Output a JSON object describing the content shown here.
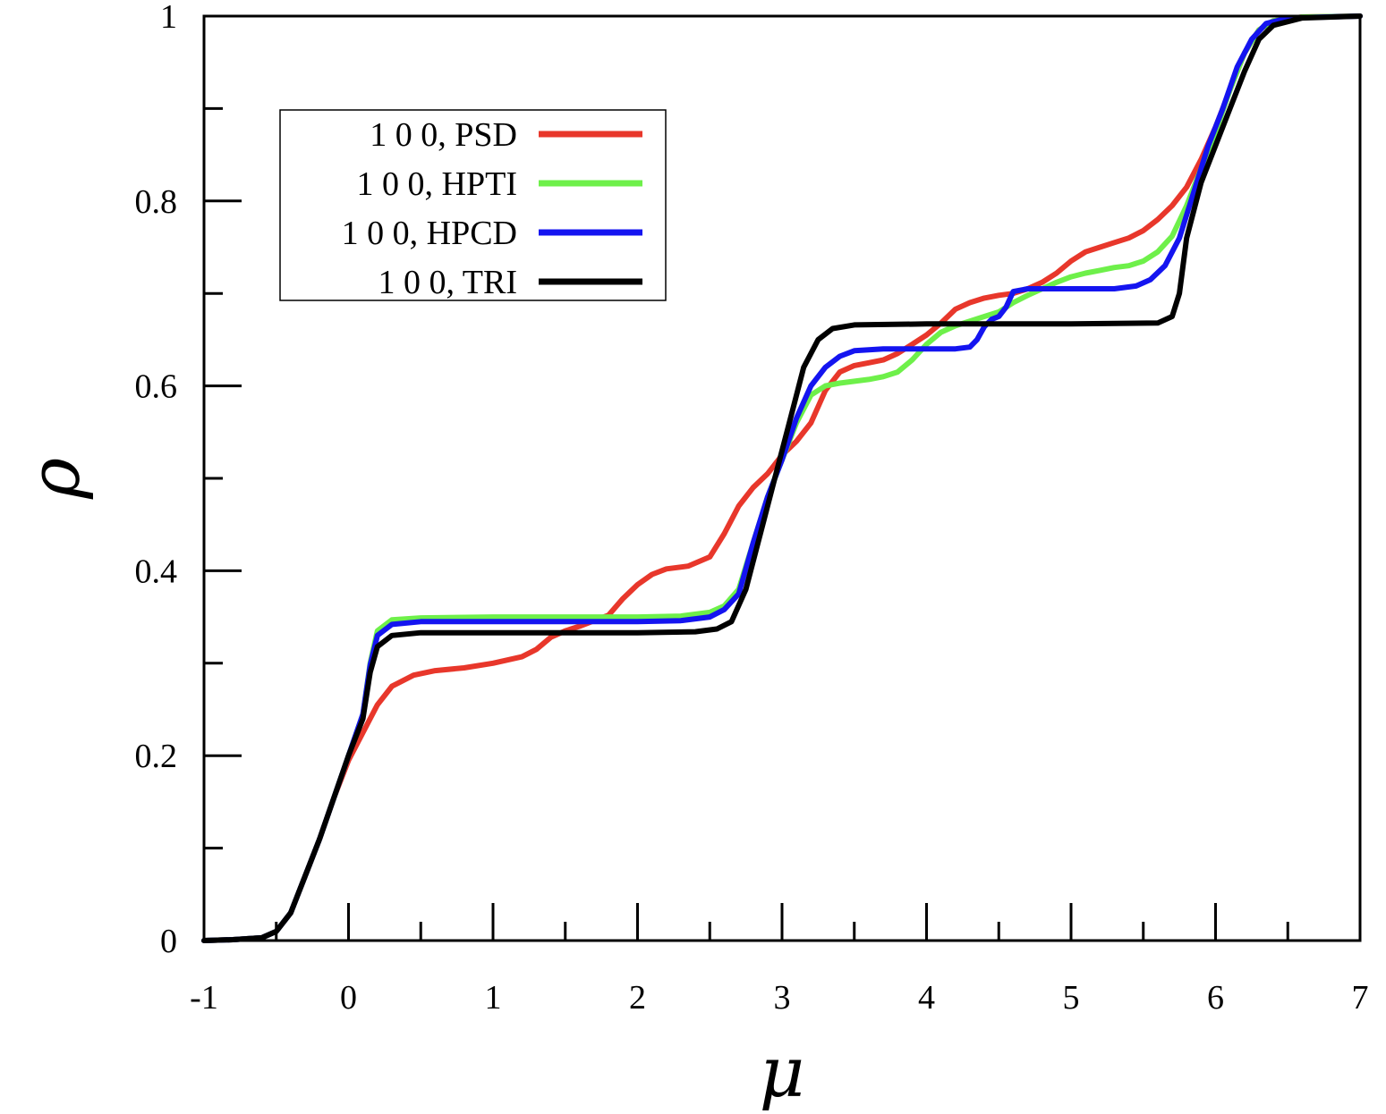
{
  "chart_data": {
    "type": "line",
    "title": "",
    "xlabel": "μ",
    "ylabel": "ρ",
    "xlim": [
      -1,
      7
    ],
    "ylim": [
      0,
      1
    ],
    "xticks": [
      -1,
      0,
      1,
      2,
      3,
      4,
      5,
      6,
      7
    ],
    "xtick_labels": [
      "-1",
      "0",
      "1",
      "2",
      "3",
      "4",
      "5",
      "6",
      "7"
    ],
    "yticks": [
      0,
      0.2,
      0.4,
      0.6,
      0.8,
      1
    ],
    "ytick_labels": [
      "0",
      "0.2",
      "0.4",
      "0.6",
      "0.8",
      "1"
    ],
    "grid": false,
    "legend_position": "top-left",
    "series": [
      {
        "name": "1 0 0, PSD",
        "color": "#e8372b",
        "points": [
          [
            -1,
            0
          ],
          [
            -0.8,
            0.001
          ],
          [
            -0.6,
            0.003
          ],
          [
            -0.5,
            0.01
          ],
          [
            -0.4,
            0.03
          ],
          [
            -0.3,
            0.07
          ],
          [
            -0.2,
            0.11
          ],
          [
            -0.1,
            0.155
          ],
          [
            0,
            0.195
          ],
          [
            0.1,
            0.225
          ],
          [
            0.2,
            0.255
          ],
          [
            0.3,
            0.275
          ],
          [
            0.45,
            0.287
          ],
          [
            0.6,
            0.292
          ],
          [
            0.8,
            0.295
          ],
          [
            1.0,
            0.3
          ],
          [
            1.2,
            0.307
          ],
          [
            1.3,
            0.315
          ],
          [
            1.4,
            0.328
          ],
          [
            1.5,
            0.335
          ],
          [
            1.6,
            0.34
          ],
          [
            1.8,
            0.352
          ],
          [
            1.9,
            0.37
          ],
          [
            2.0,
            0.385
          ],
          [
            2.1,
            0.396
          ],
          [
            2.2,
            0.402
          ],
          [
            2.35,
            0.405
          ],
          [
            2.5,
            0.415
          ],
          [
            2.6,
            0.44
          ],
          [
            2.7,
            0.47
          ],
          [
            2.8,
            0.49
          ],
          [
            2.9,
            0.505
          ],
          [
            3.0,
            0.525
          ],
          [
            3.1,
            0.54
          ],
          [
            3.2,
            0.56
          ],
          [
            3.3,
            0.595
          ],
          [
            3.4,
            0.615
          ],
          [
            3.5,
            0.622
          ],
          [
            3.6,
            0.625
          ],
          [
            3.7,
            0.628
          ],
          [
            3.8,
            0.635
          ],
          [
            3.9,
            0.645
          ],
          [
            4.0,
            0.655
          ],
          [
            4.1,
            0.668
          ],
          [
            4.2,
            0.683
          ],
          [
            4.3,
            0.69
          ],
          [
            4.4,
            0.695
          ],
          [
            4.5,
            0.698
          ],
          [
            4.6,
            0.7
          ],
          [
            4.7,
            0.705
          ],
          [
            4.8,
            0.712
          ],
          [
            4.9,
            0.722
          ],
          [
            5.0,
            0.735
          ],
          [
            5.1,
            0.745
          ],
          [
            5.2,
            0.75
          ],
          [
            5.3,
            0.755
          ],
          [
            5.4,
            0.76
          ],
          [
            5.5,
            0.768
          ],
          [
            5.6,
            0.78
          ],
          [
            5.7,
            0.795
          ],
          [
            5.8,
            0.815
          ],
          [
            5.9,
            0.845
          ],
          [
            6.0,
            0.88
          ],
          [
            6.1,
            0.92
          ],
          [
            6.2,
            0.96
          ],
          [
            6.3,
            0.985
          ],
          [
            6.4,
            0.995
          ],
          [
            6.6,
            0.999
          ],
          [
            7,
            1.0
          ]
        ]
      },
      {
        "name": "1 0 0, HPTI",
        "color": "#6ef04a",
        "points": [
          [
            -1,
            0
          ],
          [
            -0.8,
            0.001
          ],
          [
            -0.6,
            0.003
          ],
          [
            -0.5,
            0.01
          ],
          [
            -0.4,
            0.03
          ],
          [
            -0.3,
            0.07
          ],
          [
            -0.2,
            0.11
          ],
          [
            -0.1,
            0.155
          ],
          [
            0,
            0.2
          ],
          [
            0.1,
            0.245
          ],
          [
            0.15,
            0.3
          ],
          [
            0.2,
            0.335
          ],
          [
            0.3,
            0.347
          ],
          [
            0.5,
            0.349
          ],
          [
            1.0,
            0.35
          ],
          [
            2.0,
            0.35
          ],
          [
            2.3,
            0.351
          ],
          [
            2.5,
            0.355
          ],
          [
            2.6,
            0.362
          ],
          [
            2.7,
            0.38
          ],
          [
            2.8,
            0.43
          ],
          [
            2.9,
            0.48
          ],
          [
            3.0,
            0.52
          ],
          [
            3.1,
            0.56
          ],
          [
            3.2,
            0.59
          ],
          [
            3.3,
            0.6
          ],
          [
            3.4,
            0.603
          ],
          [
            3.6,
            0.607
          ],
          [
            3.7,
            0.61
          ],
          [
            3.8,
            0.615
          ],
          [
            3.9,
            0.628
          ],
          [
            4.0,
            0.645
          ],
          [
            4.1,
            0.658
          ],
          [
            4.2,
            0.665
          ],
          [
            4.3,
            0.67
          ],
          [
            4.4,
            0.675
          ],
          [
            4.5,
            0.68
          ],
          [
            4.6,
            0.69
          ],
          [
            4.7,
            0.698
          ],
          [
            4.8,
            0.705
          ],
          [
            4.9,
            0.712
          ],
          [
            5.0,
            0.718
          ],
          [
            5.1,
            0.722
          ],
          [
            5.2,
            0.725
          ],
          [
            5.3,
            0.728
          ],
          [
            5.4,
            0.73
          ],
          [
            5.5,
            0.735
          ],
          [
            5.6,
            0.745
          ],
          [
            5.7,
            0.762
          ],
          [
            5.8,
            0.795
          ],
          [
            5.9,
            0.835
          ],
          [
            6.0,
            0.875
          ],
          [
            6.1,
            0.92
          ],
          [
            6.2,
            0.96
          ],
          [
            6.3,
            0.985
          ],
          [
            6.4,
            0.995
          ],
          [
            6.6,
            0.999
          ],
          [
            7,
            1.0
          ]
        ]
      },
      {
        "name": "1 0 0, HPCD",
        "color": "#1414f0",
        "points": [
          [
            -1,
            0
          ],
          [
            -0.8,
            0.001
          ],
          [
            -0.6,
            0.003
          ],
          [
            -0.5,
            0.01
          ],
          [
            -0.4,
            0.03
          ],
          [
            -0.3,
            0.07
          ],
          [
            -0.2,
            0.11
          ],
          [
            -0.1,
            0.155
          ],
          [
            0,
            0.2
          ],
          [
            0.1,
            0.245
          ],
          [
            0.15,
            0.298
          ],
          [
            0.2,
            0.33
          ],
          [
            0.3,
            0.342
          ],
          [
            0.5,
            0.345
          ],
          [
            1.0,
            0.345
          ],
          [
            2.0,
            0.345
          ],
          [
            2.3,
            0.346
          ],
          [
            2.5,
            0.35
          ],
          [
            2.6,
            0.358
          ],
          [
            2.7,
            0.375
          ],
          [
            2.8,
            0.43
          ],
          [
            2.9,
            0.48
          ],
          [
            3.0,
            0.52
          ],
          [
            3.1,
            0.565
          ],
          [
            3.2,
            0.6
          ],
          [
            3.3,
            0.62
          ],
          [
            3.4,
            0.632
          ],
          [
            3.5,
            0.638
          ],
          [
            3.7,
            0.64
          ],
          [
            4.0,
            0.64
          ],
          [
            4.2,
            0.64
          ],
          [
            4.3,
            0.642
          ],
          [
            4.35,
            0.65
          ],
          [
            4.4,
            0.664
          ],
          [
            4.45,
            0.672
          ],
          [
            4.5,
            0.675
          ],
          [
            4.55,
            0.685
          ],
          [
            4.6,
            0.702
          ],
          [
            4.7,
            0.705
          ],
          [
            5.0,
            0.705
          ],
          [
            5.3,
            0.705
          ],
          [
            5.45,
            0.708
          ],
          [
            5.55,
            0.715
          ],
          [
            5.65,
            0.73
          ],
          [
            5.75,
            0.76
          ],
          [
            5.85,
            0.81
          ],
          [
            5.95,
            0.86
          ],
          [
            6.05,
            0.9
          ],
          [
            6.15,
            0.945
          ],
          [
            6.25,
            0.975
          ],
          [
            6.35,
            0.992
          ],
          [
            6.5,
            0.998
          ],
          [
            7,
            1.0
          ]
        ]
      },
      {
        "name": "1 0 0, TRI",
        "color": "#000000",
        "points": [
          [
            -1,
            0
          ],
          [
            -0.8,
            0.001
          ],
          [
            -0.6,
            0.003
          ],
          [
            -0.5,
            0.01
          ],
          [
            -0.4,
            0.03
          ],
          [
            -0.3,
            0.07
          ],
          [
            -0.2,
            0.11
          ],
          [
            -0.1,
            0.155
          ],
          [
            0,
            0.2
          ],
          [
            0.1,
            0.24
          ],
          [
            0.15,
            0.29
          ],
          [
            0.2,
            0.318
          ],
          [
            0.3,
            0.33
          ],
          [
            0.5,
            0.333
          ],
          [
            1.0,
            0.333
          ],
          [
            2.0,
            0.333
          ],
          [
            2.4,
            0.334
          ],
          [
            2.55,
            0.337
          ],
          [
            2.65,
            0.345
          ],
          [
            2.75,
            0.38
          ],
          [
            2.85,
            0.44
          ],
          [
            2.95,
            0.5
          ],
          [
            3.05,
            0.56
          ],
          [
            3.15,
            0.62
          ],
          [
            3.25,
            0.65
          ],
          [
            3.35,
            0.662
          ],
          [
            3.5,
            0.666
          ],
          [
            4.0,
            0.667
          ],
          [
            5.0,
            0.667
          ],
          [
            5.6,
            0.668
          ],
          [
            5.7,
            0.675
          ],
          [
            5.75,
            0.7
          ],
          [
            5.8,
            0.76
          ],
          [
            5.9,
            0.82
          ],
          [
            6.0,
            0.86
          ],
          [
            6.1,
            0.9
          ],
          [
            6.2,
            0.94
          ],
          [
            6.3,
            0.975
          ],
          [
            6.4,
            0.99
          ],
          [
            6.6,
            0.998
          ],
          [
            7,
            1.0
          ]
        ]
      }
    ]
  }
}
